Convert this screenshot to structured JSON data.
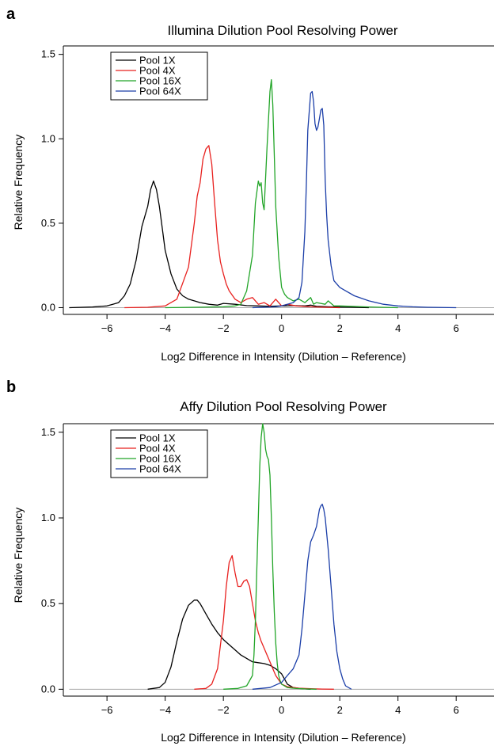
{
  "panels": [
    {
      "letter": "a",
      "title": "Illumina Dilution Pool Resolving Power",
      "xlabel": "Log2 Difference in Intensity (Dilution – Reference)",
      "ylabel": "Relative Frequency"
    },
    {
      "letter": "b",
      "title": "Affy Dilution Pool Resolving Power",
      "xlabel": "Log2 Difference in Intensity (Dilution – Reference)",
      "ylabel": "Relative Frequency"
    }
  ],
  "chart_data": [
    {
      "type": "line",
      "title": "Illumina Dilution Pool Resolving Power",
      "xlabel": "Log2 Difference in Intensity (Dilution – Reference)",
      "ylabel": "Relative Frequency",
      "xlim": [
        -7.5,
        7.3
      ],
      "ylim": [
        -0.04,
        1.55
      ],
      "xticks": [
        -6,
        -4,
        -2,
        0,
        2,
        4,
        6
      ],
      "xtick_labels": [
        "−6",
        "−4",
        "−2",
        "0",
        "2",
        "4",
        "6"
      ],
      "yticks": [
        0.0,
        0.5,
        1.0,
        1.5
      ],
      "ytick_labels": [
        "0.0",
        "0.5",
        "1.0",
        "1.5"
      ],
      "legend": "top-left",
      "baseline": 0,
      "series": [
        {
          "name": "Pool 1X",
          "color": "#000000",
          "x": [
            -7.3,
            -6.5,
            -6.0,
            -5.8,
            -5.6,
            -5.4,
            -5.2,
            -5.0,
            -4.8,
            -4.7,
            -4.6,
            -4.5,
            -4.4,
            -4.3,
            -4.2,
            -4.1,
            -4.0,
            -3.8,
            -3.6,
            -3.4,
            -3.2,
            -3.0,
            -2.8,
            -2.5,
            -2.2,
            -2.0,
            -1.6,
            -1.2,
            -0.8,
            -0.4,
            0.0,
            0.4,
            0.8,
            1.0,
            1.2,
            1.6,
            2.0,
            2.4,
            3.0
          ],
          "y": [
            0.0,
            0.004,
            0.01,
            0.02,
            0.03,
            0.07,
            0.14,
            0.28,
            0.48,
            0.54,
            0.6,
            0.7,
            0.75,
            0.7,
            0.6,
            0.47,
            0.34,
            0.2,
            0.11,
            0.07,
            0.05,
            0.04,
            0.03,
            0.02,
            0.015,
            0.025,
            0.02,
            0.012,
            0.01,
            0.008,
            0.01,
            0.012,
            0.01,
            0.015,
            0.008,
            0.005,
            0.003,
            0.002,
            0.0
          ]
        },
        {
          "name": "Pool 4X",
          "color": "#e8211f",
          "x": [
            -5.4,
            -4.6,
            -4.0,
            -3.6,
            -3.2,
            -3.0,
            -2.9,
            -2.8,
            -2.7,
            -2.6,
            -2.5,
            -2.4,
            -2.3,
            -2.2,
            -2.1,
            -2.0,
            -1.9,
            -1.8,
            -1.6,
            -1.4,
            -1.2,
            -1.0,
            -0.9,
            -0.8,
            -0.6,
            -0.4,
            -0.2,
            0.0,
            0.2,
            0.5,
            1.0,
            1.5,
            2.0
          ],
          "y": [
            0.0,
            0.002,
            0.01,
            0.05,
            0.24,
            0.5,
            0.66,
            0.74,
            0.88,
            0.94,
            0.96,
            0.85,
            0.62,
            0.4,
            0.27,
            0.2,
            0.14,
            0.1,
            0.05,
            0.03,
            0.05,
            0.06,
            0.04,
            0.02,
            0.03,
            0.01,
            0.05,
            0.01,
            0.02,
            0.01,
            0.005,
            0.002,
            0.0
          ]
        },
        {
          "name": "Pool 16X",
          "color": "#22a528",
          "x": [
            -4.0,
            -3.0,
            -2.0,
            -1.6,
            -1.4,
            -1.2,
            -1.0,
            -0.9,
            -0.8,
            -0.75,
            -0.7,
            -0.65,
            -0.6,
            -0.5,
            -0.4,
            -0.35,
            -0.3,
            -0.25,
            -0.2,
            -0.1,
            0.0,
            0.1,
            0.2,
            0.4,
            0.6,
            0.8,
            1.0,
            1.1,
            1.2,
            1.5,
            1.6,
            1.8,
            2.0,
            3.0,
            4.0
          ],
          "y": [
            0.0,
            0.002,
            0.005,
            0.01,
            0.02,
            0.1,
            0.31,
            0.62,
            0.75,
            0.72,
            0.74,
            0.62,
            0.58,
            0.95,
            1.28,
            1.35,
            1.2,
            0.9,
            0.6,
            0.3,
            0.12,
            0.08,
            0.06,
            0.04,
            0.05,
            0.03,
            0.06,
            0.02,
            0.03,
            0.02,
            0.04,
            0.01,
            0.01,
            0.004,
            0.0
          ]
        },
        {
          "name": "Pool 64X",
          "color": "#1b3ea8",
          "x": [
            -1.0,
            -0.2,
            0.0,
            0.2,
            0.4,
            0.6,
            0.7,
            0.8,
            0.85,
            0.9,
            1.0,
            1.05,
            1.1,
            1.15,
            1.2,
            1.25,
            1.3,
            1.35,
            1.4,
            1.45,
            1.5,
            1.55,
            1.6,
            1.7,
            1.8,
            2.0,
            2.2,
            2.5,
            3.0,
            3.5,
            4.0,
            4.5,
            5.0,
            6.0
          ],
          "y": [
            0.0,
            0.005,
            0.01,
            0.02,
            0.03,
            0.06,
            0.15,
            0.45,
            0.72,
            1.05,
            1.27,
            1.28,
            1.22,
            1.09,
            1.05,
            1.07,
            1.12,
            1.17,
            1.18,
            1.08,
            0.75,
            0.55,
            0.4,
            0.25,
            0.16,
            0.12,
            0.1,
            0.07,
            0.04,
            0.02,
            0.01,
            0.005,
            0.002,
            0.0
          ]
        }
      ]
    },
    {
      "type": "line",
      "title": "Affy Dilution Pool Resolving Power",
      "xlabel": "Log2 Difference in Intensity (Dilution – Reference)",
      "ylabel": "Relative Frequency",
      "xlim": [
        -7.5,
        7.3
      ],
      "ylim": [
        -0.04,
        1.55
      ],
      "xticks": [
        -6,
        -4,
        -2,
        0,
        2,
        4,
        6
      ],
      "xtick_labels": [
        "−6",
        "−4",
        "−2",
        "0",
        "2",
        "4",
        "6"
      ],
      "yticks": [
        0.0,
        0.5,
        1.0,
        1.5
      ],
      "ytick_labels": [
        "0.0",
        "0.5",
        "1.0",
        "1.5"
      ],
      "legend": "top-left",
      "baseline": 0,
      "series": [
        {
          "name": "Pool 1X",
          "color": "#000000",
          "x": [
            -4.6,
            -4.2,
            -4.0,
            -3.8,
            -3.6,
            -3.4,
            -3.2,
            -3.0,
            -2.9,
            -2.8,
            -2.6,
            -2.4,
            -2.2,
            -2.0,
            -1.8,
            -1.6,
            -1.4,
            -1.2,
            -1.0,
            -0.8,
            -0.6,
            -0.4,
            -0.2,
            0.0,
            0.1,
            0.2,
            0.4,
            0.6,
            0.8,
            1.0
          ],
          "y": [
            0.0,
            0.01,
            0.04,
            0.13,
            0.28,
            0.41,
            0.49,
            0.52,
            0.52,
            0.5,
            0.44,
            0.38,
            0.33,
            0.29,
            0.26,
            0.23,
            0.2,
            0.18,
            0.16,
            0.155,
            0.15,
            0.14,
            0.12,
            0.09,
            0.06,
            0.03,
            0.01,
            0.005,
            0.002,
            0.0
          ]
        },
        {
          "name": "Pool 4X",
          "color": "#e8211f",
          "x": [
            -3.0,
            -2.6,
            -2.4,
            -2.2,
            -2.0,
            -1.9,
            -1.8,
            -1.7,
            -1.6,
            -1.5,
            -1.4,
            -1.3,
            -1.2,
            -1.1,
            -1.0,
            -0.9,
            -0.8,
            -0.7,
            -0.6,
            -0.5,
            -0.4,
            -0.3,
            -0.2,
            0.0,
            0.2,
            0.6,
            1.0,
            1.4,
            1.8
          ],
          "y": [
            0.0,
            0.005,
            0.03,
            0.12,
            0.4,
            0.6,
            0.74,
            0.78,
            0.68,
            0.6,
            0.6,
            0.63,
            0.64,
            0.6,
            0.5,
            0.4,
            0.33,
            0.28,
            0.24,
            0.2,
            0.16,
            0.12,
            0.08,
            0.03,
            0.015,
            0.006,
            0.003,
            0.001,
            0.0
          ]
        },
        {
          "name": "Pool 16X",
          "color": "#22a528",
          "x": [
            -2.0,
            -1.5,
            -1.2,
            -1.0,
            -0.95,
            -0.9,
            -0.85,
            -0.8,
            -0.75,
            -0.7,
            -0.65,
            -0.6,
            -0.55,
            -0.5,
            -0.45,
            -0.4,
            -0.35,
            -0.3,
            -0.25,
            -0.2,
            -0.15,
            -0.1,
            -0.05,
            0.0,
            0.2,
            0.5,
            0.8,
            1.2
          ],
          "y": [
            0.0,
            0.005,
            0.02,
            0.08,
            0.2,
            0.4,
            0.7,
            1.0,
            1.3,
            1.47,
            1.55,
            1.5,
            1.4,
            1.36,
            1.34,
            1.25,
            1.0,
            0.7,
            0.45,
            0.27,
            0.15,
            0.08,
            0.05,
            0.03,
            0.01,
            0.005,
            0.002,
            0.0
          ]
        },
        {
          "name": "Pool 64X",
          "color": "#1b3ea8",
          "x": [
            -1.0,
            -0.4,
            0.0,
            0.2,
            0.4,
            0.6,
            0.7,
            0.8,
            0.9,
            1.0,
            1.1,
            1.2,
            1.3,
            1.35,
            1.4,
            1.45,
            1.5,
            1.6,
            1.7,
            1.8,
            1.9,
            2.0,
            2.1,
            2.2,
            2.4
          ],
          "y": [
            0.0,
            0.01,
            0.04,
            0.08,
            0.12,
            0.2,
            0.35,
            0.55,
            0.75,
            0.86,
            0.9,
            0.95,
            1.05,
            1.07,
            1.08,
            1.05,
            1.0,
            0.82,
            0.6,
            0.38,
            0.22,
            0.12,
            0.06,
            0.02,
            0.0
          ]
        }
      ]
    }
  ]
}
